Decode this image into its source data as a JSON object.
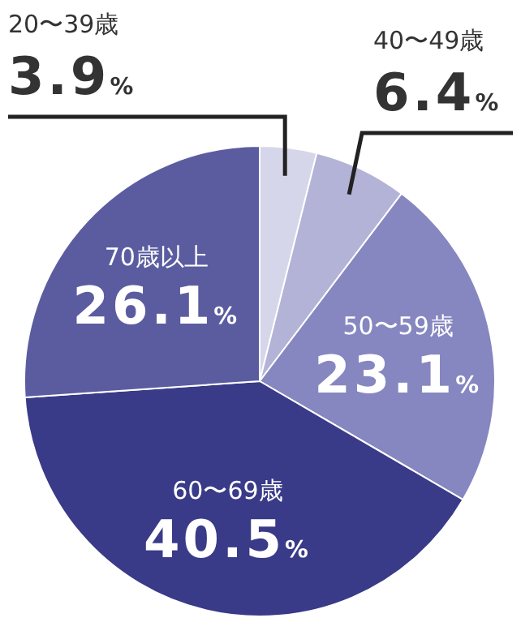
{
  "chart_data": {
    "type": "pie",
    "categories": [
      "20〜39歳",
      "40〜49歳",
      "50〜59歳",
      "60〜69歳",
      "70歳以上"
    ],
    "values": [
      3.9,
      6.4,
      23.1,
      40.5,
      26.1
    ],
    "value_labels": [
      "3.9%",
      "6.4%",
      "23.1%",
      "40.5%",
      "26.1%"
    ],
    "colors": [
      "#d5d6ea",
      "#b2b3d6",
      "#8687c0",
      "#393a88",
      "#5b5ca0"
    ]
  }
}
